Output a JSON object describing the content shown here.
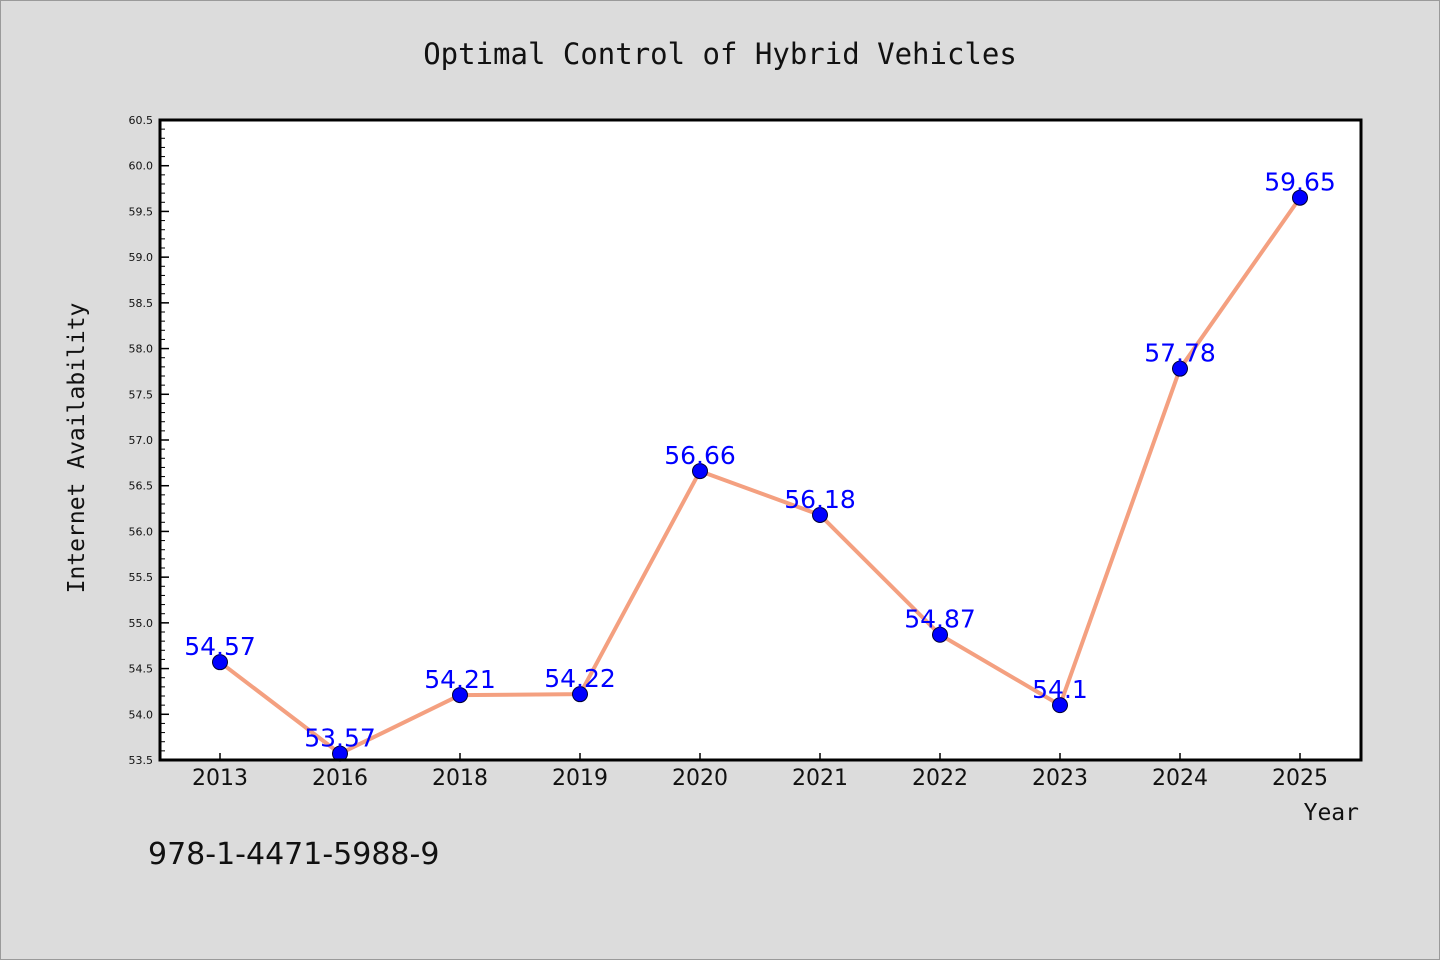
{
  "chart_data": {
    "type": "line",
    "title": "Optimal Control of Hybrid Vehicles",
    "xlabel": "Year",
    "ylabel": "Internet Availability",
    "categories": [
      "2013",
      "2016",
      "2018",
      "2019",
      "2020",
      "2021",
      "2022",
      "2023",
      "2024",
      "2025"
    ],
    "values": [
      54.57,
      53.57,
      54.21,
      54.22,
      56.66,
      56.18,
      54.87,
      54.1,
      57.78,
      59.65
    ],
    "data_labels": [
      "54.57",
      "53.57",
      "54.21",
      "54.22",
      "56.66",
      "56.18",
      "54.87",
      "54.1",
      "57.78",
      "59.65"
    ],
    "ylim": [
      53.5,
      60.5
    ],
    "yticks": [
      "53.5",
      "54.0",
      "54.5",
      "55.0",
      "55.5",
      "56.0",
      "56.5",
      "57.0",
      "57.5",
      "58.0",
      "58.5",
      "59.0",
      "59.5",
      "60.0",
      "60.5"
    ],
    "grid": false,
    "legend": "none",
    "line_color": "#f4a080",
    "marker_color": "#0000ff",
    "label_color": "#0000ff"
  },
  "annotation": "978-1-4471-5988-9"
}
